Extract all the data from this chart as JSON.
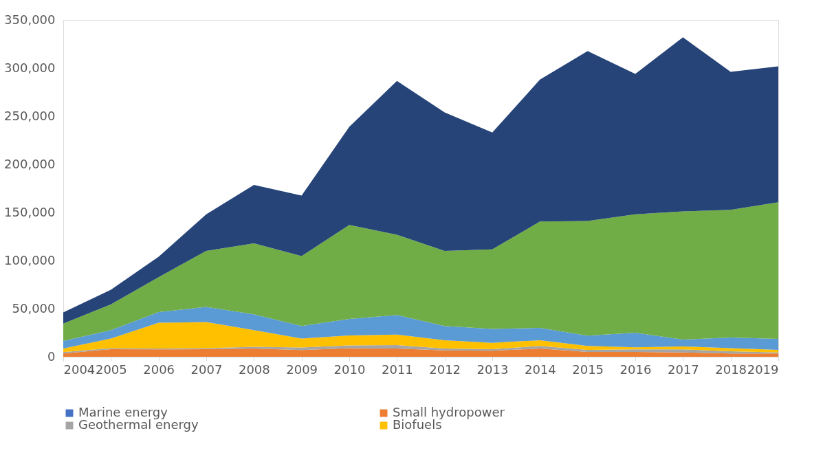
{
  "chart_data": {
    "type": "area",
    "stacked": true,
    "legend": "bottom",
    "grid": false,
    "x": [
      2004,
      2005,
      2006,
      2007,
      2008,
      2009,
      2010,
      2011,
      2012,
      2013,
      2014,
      2015,
      2016,
      2017,
      2018,
      2019
    ],
    "xlim": [
      2004,
      2019
    ],
    "xticks": [
      2004,
      2005,
      2006,
      2007,
      2008,
      2009,
      2010,
      2011,
      2012,
      2013,
      2014,
      2015,
      2016,
      2017,
      2018,
      2019
    ],
    "ylim": [
      0,
      350000
    ],
    "yticks": [
      0,
      {
        "value": 50000,
        "label": "50,000"
      },
      {
        "value": 100000,
        "label": "100,000"
      },
      {
        "value": 150000,
        "label": "150,000"
      },
      {
        "value": 200000,
        "label": "200,000"
      },
      {
        "value": 250000,
        "label": "250,000"
      },
      {
        "value": 300000,
        "label": "300,000"
      },
      {
        "value": 350000,
        "label": "350,000"
      }
    ],
    "series": [
      {
        "name": "Marine energy",
        "color": "#4472c4",
        "values": [
          null,
          null,
          null,
          null,
          null,
          null,
          null,
          null,
          null,
          null,
          null,
          null,
          null,
          null,
          null,
          null
        ]
      },
      {
        "name": "Small hydropower",
        "color": "#ed7d31",
        "values": [
          3400,
          7900,
          7600,
          7900,
          8500,
          6900,
          9000,
          8500,
          6600,
          6200,
          8500,
          5000,
          5000,
          4500,
          3400,
          3400
        ]
      },
      {
        "name": "Geothermal energy",
        "color": "#a5a5a5",
        "values": [
          1400,
          1100,
          900,
          1100,
          1800,
          2700,
          2700,
          3700,
          1900,
          1700,
          2700,
          2200,
          2600,
          3100,
          2400,
          1100
        ]
      },
      {
        "name": "Biofuels",
        "color": "#ffc000",
        "values": [
          3700,
          10000,
          26900,
          27000,
          17300,
          9400,
          10500,
          10800,
          8700,
          6600,
          6000,
          4000,
          2300,
          3100,
          3200,
          2700
        ]
      },
      {
        "color": "#5b9bd5",
        "values": [
          8000,
          8600,
          11100,
          15700,
          16500,
          13000,
          17100,
          20400,
          14700,
          14500,
          12800,
          10800,
          15100,
          7200,
          11000,
          11400
        ]
      },
      {
        "color": "#70ad47",
        "values": [
          18000,
          26800,
          36200,
          58300,
          73700,
          72700,
          97700,
          83400,
          78100,
          82600,
          110500,
          119000,
          123000,
          133100,
          132600,
          141900
        ]
      },
      {
        "color": "#264478",
        "values": [
          11500,
          15200,
          21300,
          38000,
          60700,
          62800,
          102000,
          159800,
          144000,
          121400,
          147500,
          176600,
          146000,
          181000,
          143400,
          141200
        ]
      }
    ]
  }
}
